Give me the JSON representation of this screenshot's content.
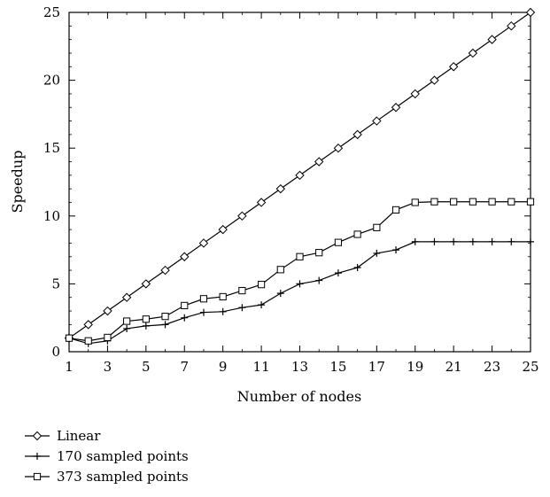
{
  "chart_data": {
    "type": "line",
    "xlabel": "Number of nodes",
    "ylabel": "Speedup",
    "xlim": [
      1,
      25
    ],
    "ylim": [
      0,
      25
    ],
    "x_ticks": [
      "1",
      "3",
      "5",
      "7",
      "9",
      "11",
      "13",
      "15",
      "17",
      "19",
      "21",
      "23",
      "25"
    ],
    "y_ticks": [
      "0",
      "5",
      "10",
      "15",
      "20",
      "25"
    ],
    "grid": false,
    "legend_position": "bottom-left",
    "x": [
      1,
      2,
      3,
      4,
      5,
      6,
      7,
      8,
      9,
      10,
      11,
      12,
      13,
      14,
      15,
      16,
      17,
      18,
      19,
      20,
      21,
      22,
      23,
      24,
      25
    ],
    "series": [
      {
        "name": "Linear",
        "marker": "diamond",
        "values": [
          1,
          2,
          3,
          4,
          5,
          6,
          7,
          8,
          9,
          10,
          11,
          12,
          13,
          14,
          15,
          16,
          17,
          18,
          19,
          20,
          21,
          22,
          23,
          24,
          25
        ]
      },
      {
        "name": "170 sampled points",
        "marker": "plus",
        "values": [
          1,
          0.6,
          0.8,
          1.7,
          1.9,
          2.0,
          2.5,
          2.9,
          2.95,
          3.25,
          3.45,
          4.3,
          5.0,
          5.25,
          5.8,
          6.2,
          7.25,
          7.5,
          8.1,
          8.1,
          8.1,
          8.1,
          8.1,
          8.1,
          8.1
        ]
      },
      {
        "name": "373 sampled points",
        "marker": "square",
        "values": [
          1,
          0.8,
          1.05,
          2.25,
          2.4,
          2.6,
          3.4,
          3.9,
          4.05,
          4.5,
          4.95,
          6.05,
          7.0,
          7.3,
          8.05,
          8.65,
          9.15,
          10.45,
          11.0,
          11.05,
          11.05,
          11.05,
          11.05,
          11.05,
          11.05
        ]
      }
    ]
  }
}
